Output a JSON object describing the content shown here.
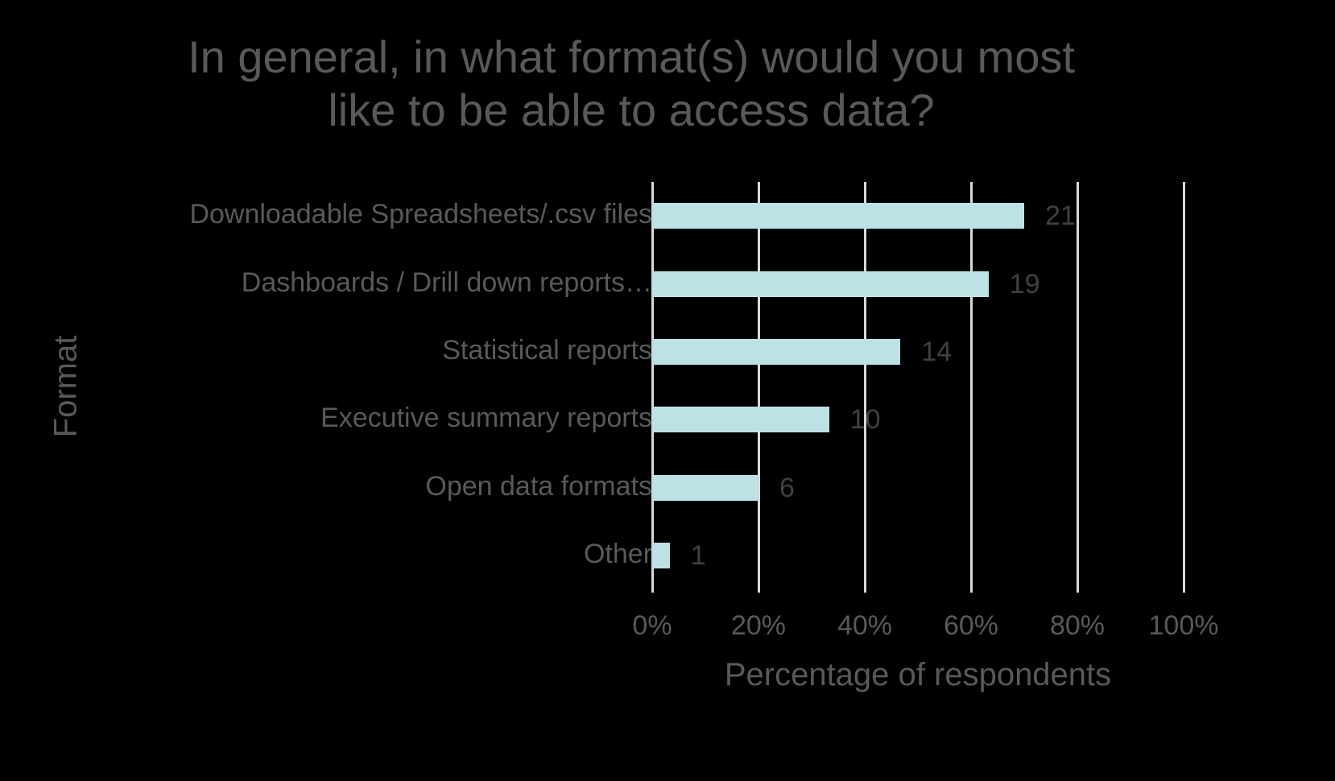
{
  "chart_data": {
    "type": "bar",
    "orientation": "horizontal",
    "title": "In general, in what format(s) would you most\nlike to be able to access data?",
    "xlabel": "Percentage of respondents",
    "ylabel": "Format",
    "categories": [
      "Downloadable Spreadsheets/.csv files",
      "Dashboards / Drill down reports…",
      "Statistical reports",
      "Executive summary reports",
      "Open data formats",
      "Other"
    ],
    "values": [
      21,
      19,
      14,
      10,
      6,
      1
    ],
    "percentages": [
      70.0,
      63.3,
      46.7,
      33.3,
      20.0,
      3.3
    ],
    "data_labels": [
      "21",
      "19",
      "14",
      "10",
      "6",
      "1"
    ],
    "xlim": [
      0,
      100
    ],
    "xticks": [
      "0%",
      "20%",
      "40%",
      "60%",
      "80%",
      "100%"
    ],
    "grid": "vertical",
    "legend": null,
    "bar_color": "#bde1e4",
    "gridline_color": "#d9d9d9",
    "text_color": "#595959",
    "background": "#000000"
  }
}
